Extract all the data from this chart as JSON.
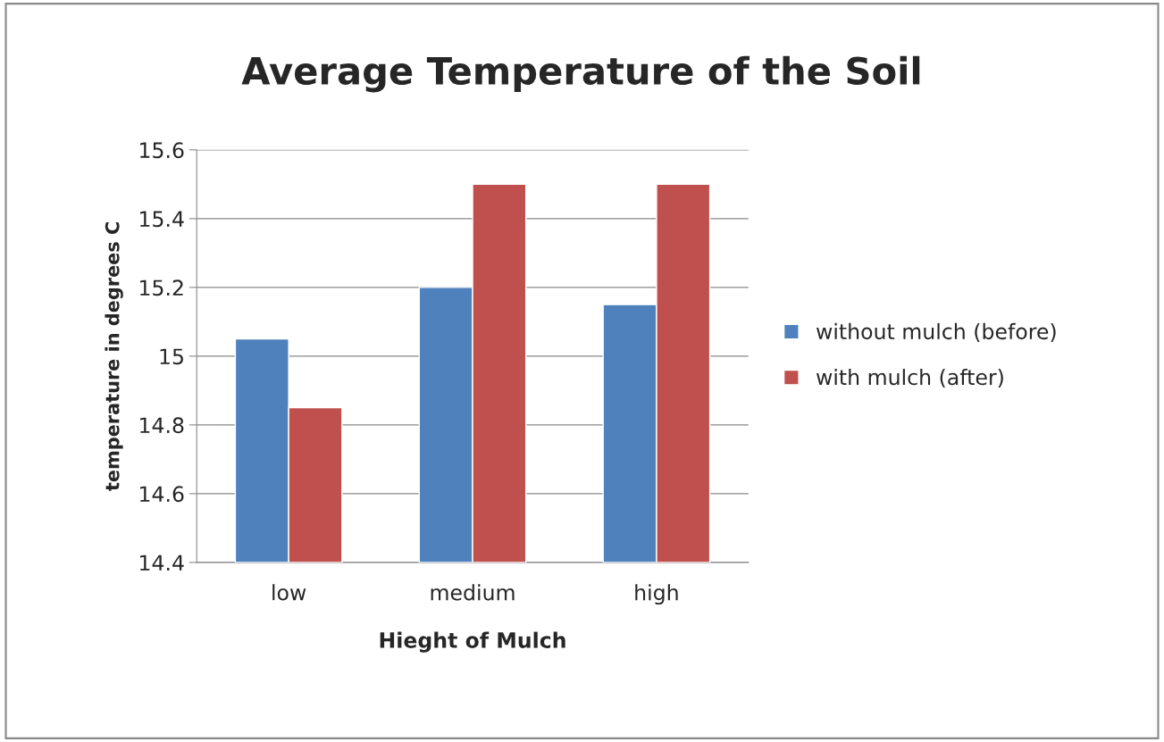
{
  "chart_data": {
    "type": "bar",
    "title": "Average Temperature of the Soil",
    "xlabel": "Hieght of Mulch",
    "ylabel": "temperature in degrees C",
    "categories": [
      "low",
      "medium",
      "high"
    ],
    "series": [
      {
        "name": "without mulch (before)",
        "color": "#4f81bd",
        "values": [
          15.05,
          15.2,
          15.15
        ]
      },
      {
        "name": "with mulch (after)",
        "color": "#c0504d",
        "values": [
          14.85,
          15.5,
          15.5
        ]
      }
    ],
    "ylim": [
      14.4,
      15.6
    ],
    "yticks": [
      14.4,
      14.6,
      14.8,
      15,
      15.2,
      15.4,
      15.6
    ],
    "grid": "y",
    "legend": "right"
  }
}
